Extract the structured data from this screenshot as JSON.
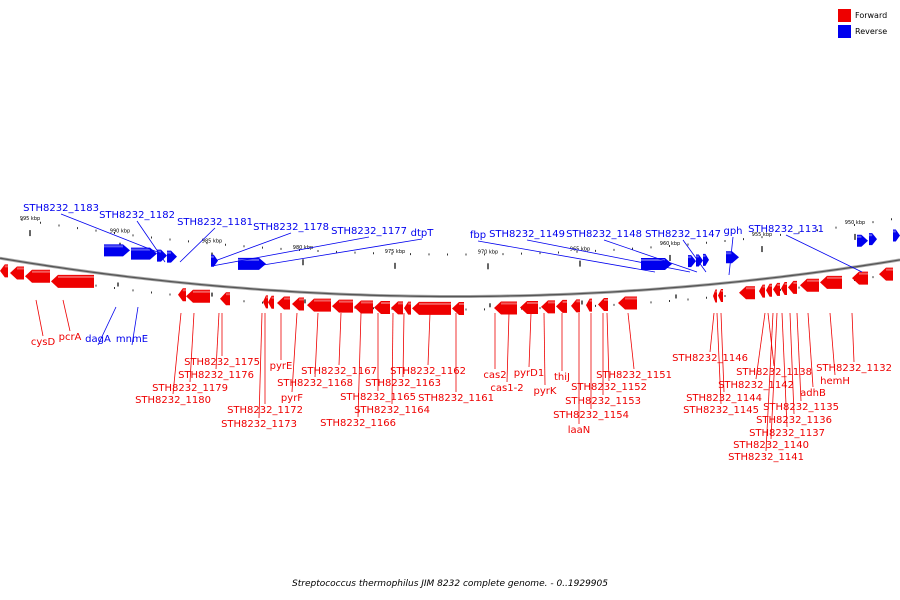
{
  "legend": {
    "forward": {
      "label": "Forward",
      "color": "#ee0000"
    },
    "reverse": {
      "label": "Reverse",
      "color": "#0000ee"
    }
  },
  "caption": "Streptococcus thermophilus JIM 8232 complete genome. - 0..1929905",
  "axis": {
    "ticks": [
      {
        "label": "995 kbp",
        "kbp": 995
      },
      {
        "label": "990 kbp",
        "kbp": 990
      },
      {
        "label": "985 kbp",
        "kbp": 985
      },
      {
        "label": "980 kbp",
        "kbp": 980
      },
      {
        "label": "975 kbp",
        "kbp": 975
      },
      {
        "label": "970 kbp",
        "kbp": 970
      },
      {
        "label": "965 kbp",
        "kbp": 965
      },
      {
        "label": "960 kbp",
        "kbp": 960
      },
      {
        "label": "955 kbp",
        "kbp": 955
      },
      {
        "label": "950 kbp",
        "kbp": 950
      }
    ]
  },
  "genes": {
    "reverse": [
      "STH8232_1183",
      "STH8232_1182",
      "STH8232_1181",
      "STH8232_1178",
      "STH8232_1177",
      "dtpT",
      "fbp",
      "STH8232_1149",
      "STH8232_1148",
      "STH8232_1147",
      "gph",
      "STH8232_1131",
      "dagA",
      "mnmE"
    ],
    "forward": [
      "cysD",
      "pcrA",
      "STH8232_1175",
      "STH8232_1176",
      "STH8232_1179",
      "STH8232_1180",
      "pyrE",
      "STH8232_1168",
      "pyrF",
      "STH8232_1172",
      "STH8232_1173",
      "STH8232_1167",
      "STH8232_1165",
      "STH8232_1166",
      "STH8232_1163",
      "STH8232_1164",
      "STH8232_1162",
      "STH8232_1161",
      "cas2",
      "cas1-2",
      "pyrD1",
      "pyrK",
      "thiJ",
      "STH8232_1151",
      "STH8232_1152",
      "STH8232_1153",
      "STH8232_1154",
      "laaN",
      "STH8232_1146",
      "STH8232_1138",
      "STH8232_1142",
      "STH8232_1144",
      "STH8232_1145",
      "STH8232_1135",
      "STH8232_1136",
      "STH8232_1137",
      "STH8232_1140",
      "STH8232_1141",
      "adhB",
      "hemH",
      "STH8232_1132"
    ]
  }
}
